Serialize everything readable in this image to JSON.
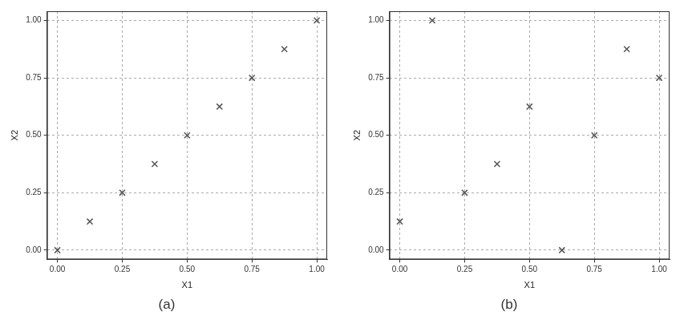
{
  "chart_data": [
    {
      "type": "scatter",
      "title": "(a)",
      "x_label": "X1",
      "y_label": "X2",
      "x": [
        0,
        0.125,
        0.25,
        0.375,
        0.5,
        0.625,
        0.75,
        0.875,
        1
      ],
      "values": [
        0,
        0.125,
        0.25,
        0.375,
        0.5,
        0.625,
        0.75,
        0.875,
        1
      ],
      "color": "#555555",
      "marker": "x",
      "xlim": [
        -0.04,
        1.04
      ],
      "ylim": [
        -0.04,
        1.04
      ],
      "xticks": [
        {
          "value": 0,
          "label": "0.00"
        },
        {
          "value": 0.25,
          "label": "0.25"
        },
        {
          "value": 0.5,
          "label": "0.50"
        },
        {
          "value": 0.75,
          "label": "0.75"
        },
        {
          "value": 1,
          "label": "1.00"
        }
      ],
      "yticks": [
        {
          "value": 0,
          "label": "0.00"
        },
        {
          "value": 0.25,
          "label": "0.25"
        },
        {
          "value": 0.5,
          "label": "0.50"
        },
        {
          "value": 0.75,
          "label": "0.75"
        },
        {
          "value": 1,
          "label": "1.00"
        }
      ],
      "grid": true
    },
    {
      "type": "scatter",
      "title": "(b)",
      "x_label": "X1",
      "y_label": "X2",
      "x": [
        0,
        0.125,
        0.25,
        0.375,
        0.5,
        0.625,
        0.75,
        0.875,
        1
      ],
      "values": [
        0.125,
        1,
        0.25,
        0.375,
        0.625,
        0,
        0.5,
        0.875,
        0.75
      ],
      "color": "#555555",
      "marker": "x",
      "xlim": [
        -0.04,
        1.04
      ],
      "ylim": [
        -0.04,
        1.04
      ],
      "xticks": [
        {
          "value": 0,
          "label": "0.00"
        },
        {
          "value": 0.25,
          "label": "0.25"
        },
        {
          "value": 0.5,
          "label": "0.50"
        },
        {
          "value": 0.75,
          "label": "0.75"
        },
        {
          "value": 1,
          "label": "1.00"
        }
      ],
      "yticks": [
        {
          "value": 0,
          "label": "0.00"
        },
        {
          "value": 0.25,
          "label": "0.25"
        },
        {
          "value": 0.5,
          "label": "0.50"
        },
        {
          "value": 0.75,
          "label": "0.75"
        },
        {
          "value": 1,
          "label": "1.00"
        }
      ],
      "grid": true
    }
  ]
}
